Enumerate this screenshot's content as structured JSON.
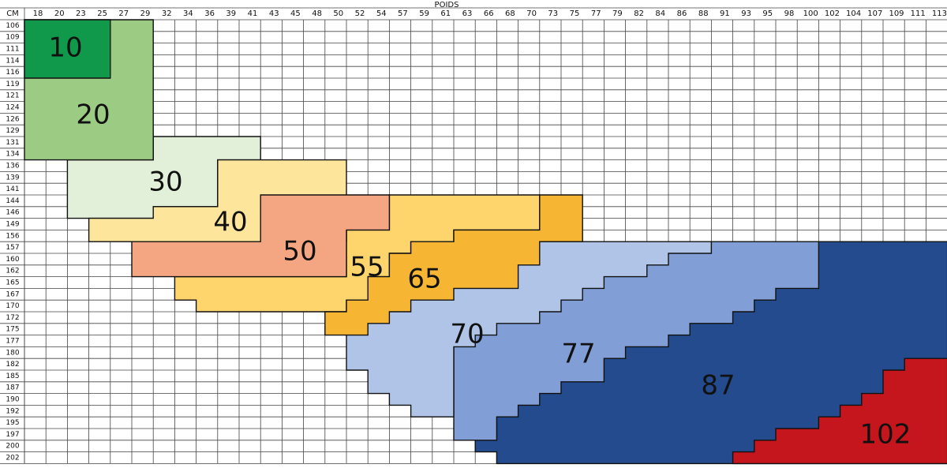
{
  "header": {
    "corner": "CM",
    "title": "POIDS",
    "weights": [
      18,
      20,
      23,
      25,
      27,
      29,
      32,
      34,
      36,
      39,
      41,
      43,
      45,
      48,
      50,
      52,
      54,
      57,
      59,
      61,
      63,
      66,
      68,
      70,
      73,
      75,
      77,
      79,
      82,
      84,
      86,
      88,
      91,
      93,
      95,
      98,
      100,
      102,
      104,
      107,
      109,
      111,
      113
    ]
  },
  "heights": [
    106,
    109,
    111,
    114,
    116,
    119,
    121,
    124,
    126,
    129,
    131,
    134,
    136,
    139,
    141,
    144,
    146,
    149,
    156,
    157,
    160,
    162,
    165,
    167,
    170,
    172,
    175,
    177,
    180,
    182,
    185,
    187,
    190,
    192,
    195,
    197,
    200,
    202
  ],
  "zones": [
    {
      "label": "87",
      "color": "#234b8d"
    },
    {
      "label": "77",
      "color": "#819fd6"
    },
    {
      "label": "70",
      "color": "#afc4e6"
    },
    {
      "label": "102",
      "color": "#c4161c"
    },
    {
      "label": "55",
      "color": "#fdd56c"
    },
    {
      "label": "65",
      "color": "#f6b634"
    },
    {
      "label": "30",
      "color": "#e2efd9"
    },
    {
      "label": "40",
      "color": "#fde59c"
    },
    {
      "label": "50",
      "color": "#f4a683"
    },
    {
      "label": "20",
      "color": "#9ccb84"
    },
    {
      "label": "10",
      "color": "#10994a"
    }
  ]
}
